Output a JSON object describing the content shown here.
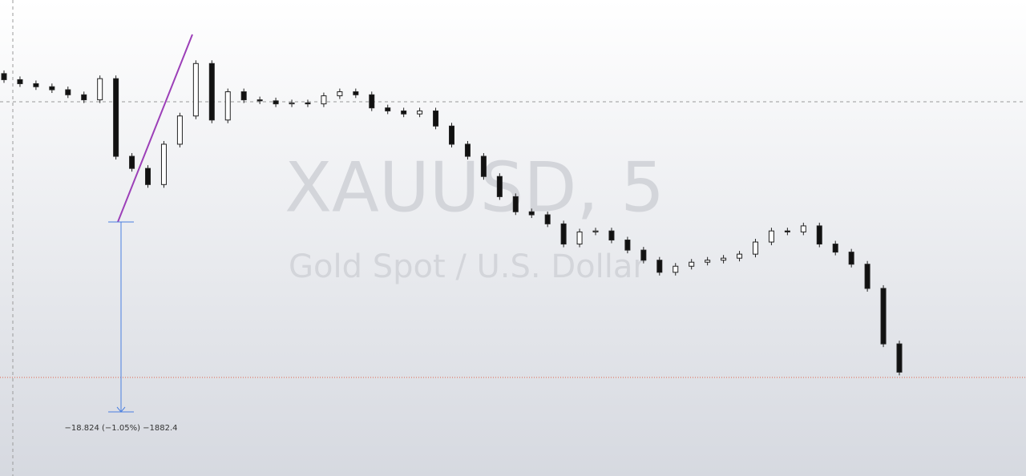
{
  "chart_data": {
    "type": "candlestick",
    "watermark_title": "XAUUSD, 5",
    "watermark_subtitle": "Gold Spot / U.S. Dollar",
    "measure_label": "−18.824 (−1.05%) −1882.4",
    "open": 1807.5,
    "values": [
      1806.9,
      1806.5,
      1806.2,
      1805.9,
      1805.4,
      1804.9,
      1807.0,
      1799.3,
      1798.1,
      1796.5,
      1800.5,
      1803.3,
      1808.5,
      1802.9,
      1805.7,
      1804.9,
      1804.8,
      1804.5,
      1804.6,
      1804.5,
      1805.3,
      1805.7,
      1805.4,
      1804.1,
      1803.8,
      1803.5,
      1803.8,
      1802.3,
      1800.5,
      1799.3,
      1797.3,
      1795.3,
      1793.8,
      1793.5,
      1792.6,
      1790.6,
      1791.8,
      1791.9,
      1791.0,
      1790.0,
      1789.0,
      1787.8,
      1788.4,
      1788.8,
      1789.0,
      1789.2,
      1789.6,
      1790.8,
      1791.9,
      1791.8,
      1792.4,
      1790.6,
      1789.8,
      1788.6,
      1786.2,
      1780.7,
      1777.9
    ],
    "ylim": [
      1767.6,
      1814.8
    ],
    "up_color": "#ffffff",
    "down_color": "#111111"
  }
}
